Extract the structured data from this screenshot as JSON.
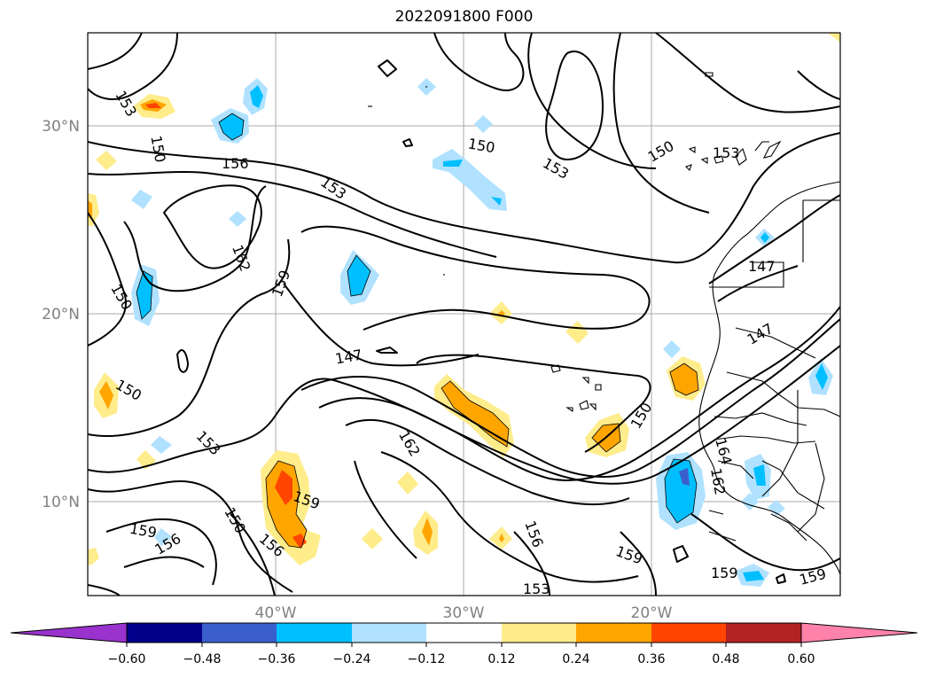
{
  "title": "2022091800 F000",
  "axes": {
    "lat_ticks": [
      "30°N",
      "20°N",
      "10°N"
    ],
    "lon_ticks": [
      "40°W",
      "30°W",
      "20°W"
    ]
  },
  "colorbar": {
    "tick_labels": [
      "−0.60",
      "−0.48",
      "−0.36",
      "−0.24",
      "−0.12",
      "0.12",
      "0.24",
      "0.36",
      "0.48",
      "0.60"
    ],
    "colors": [
      "#9a32cd",
      "#00008b",
      "#3a5fcd",
      "#00bfff",
      "#b0e2ff",
      "#ffffff",
      "#ffec8b",
      "#ffa500",
      "#ff4500",
      "#b22222",
      "#ff82ab"
    ]
  },
  "contour_labels": [
    "153",
    "150",
    "156",
    "153",
    "162",
    "159",
    "150",
    "147",
    "150",
    "153",
    "150",
    "153",
    "147",
    "147",
    "150",
    "153",
    "162",
    "159",
    "150",
    "156",
    "159",
    "156",
    "153",
    "159",
    "150",
    "162",
    "159",
    "159",
    "156",
    "164"
  ]
}
